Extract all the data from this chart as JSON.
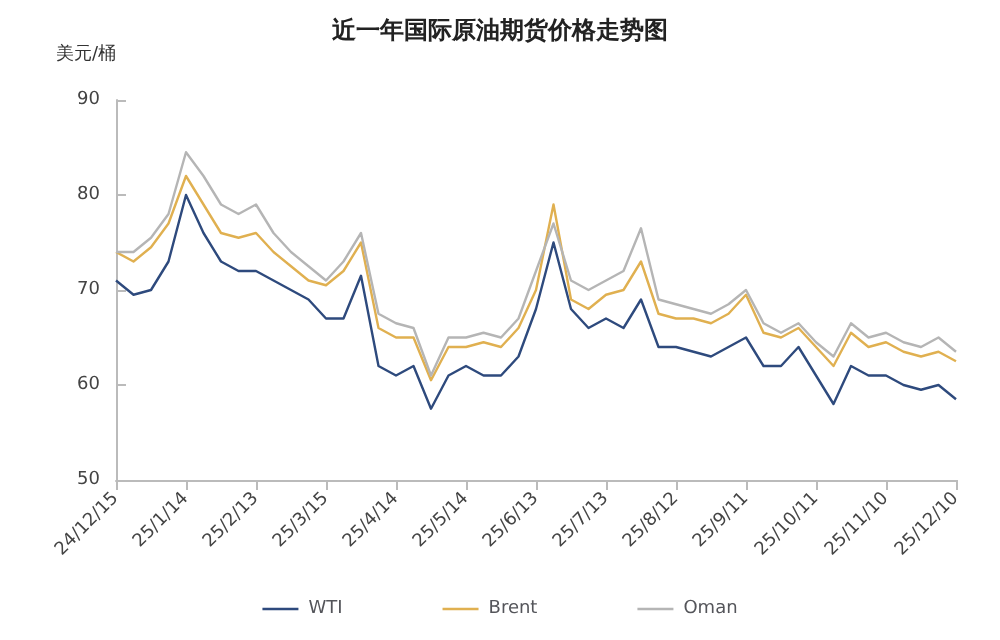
{
  "chart_data": {
    "type": "line",
    "title": "近一年国际原油期货价格走势图",
    "ylabel": "美元/桶",
    "categories": [
      "24/12/15",
      null,
      null,
      null,
      "25/1/14",
      null,
      null,
      null,
      "25/2/13",
      null,
      null,
      null,
      "25/3/15",
      null,
      null,
      null,
      "25/4/14",
      null,
      null,
      null,
      "25/5/14",
      null,
      null,
      null,
      "25/6/13",
      null,
      null,
      null,
      "25/7/13",
      null,
      null,
      null,
      "25/8/12",
      null,
      null,
      null,
      "25/9/11",
      null,
      null,
      null,
      "25/10/11",
      null,
      null,
      null,
      "25/11/10",
      null,
      null,
      null,
      "25/12/10"
    ],
    "series": [
      {
        "name": "WTI",
        "color": "#2e4a7d",
        "values": [
          71,
          69.5,
          70,
          73,
          80,
          76,
          73,
          72,
          72,
          71,
          70,
          69,
          67,
          67,
          71.5,
          62,
          61,
          62,
          57.5,
          61,
          62,
          61,
          61,
          63,
          68,
          75,
          68,
          66,
          67,
          66,
          69,
          64,
          64,
          63.5,
          63,
          64,
          65,
          62,
          62,
          64,
          61,
          58,
          62,
          61,
          61,
          60,
          59.5,
          60,
          58.5
        ]
      },
      {
        "name": "Brent",
        "color": "#e0b050",
        "values": [
          74,
          73,
          74.5,
          77,
          82,
          79,
          76,
          75.5,
          76,
          74,
          72.5,
          71,
          70.5,
          72,
          75,
          66,
          65,
          65,
          60.5,
          64,
          64,
          64.5,
          64,
          66,
          70,
          79,
          69,
          68,
          69.5,
          70,
          73,
          67.5,
          67,
          67,
          66.5,
          67.5,
          69.5,
          65.5,
          65,
          66,
          64,
          62,
          65.5,
          64,
          64.5,
          63.5,
          63,
          63.5,
          62.5
        ]
      },
      {
        "name": "Oman",
        "color": "#b5b5b5",
        "values": [
          74,
          74,
          75.5,
          78,
          84.5,
          82,
          79,
          78,
          79,
          76,
          74,
          72.5,
          71,
          73,
          76,
          67.5,
          66.5,
          66,
          61,
          65,
          65,
          65.5,
          65,
          67,
          72,
          77,
          71,
          70,
          71,
          72,
          76.5,
          69,
          68.5,
          68,
          67.5,
          68.5,
          70,
          66.5,
          65.5,
          66.5,
          64.5,
          63,
          66.5,
          65,
          65.5,
          64.5,
          64,
          65,
          63.5
        ]
      }
    ],
    "ylim": [
      50,
      90
    ],
    "yticks": [
      50,
      60,
      70,
      80,
      90
    ],
    "grid": false,
    "legend": "bottom",
    "marker": "none",
    "line_style": "solid"
  }
}
